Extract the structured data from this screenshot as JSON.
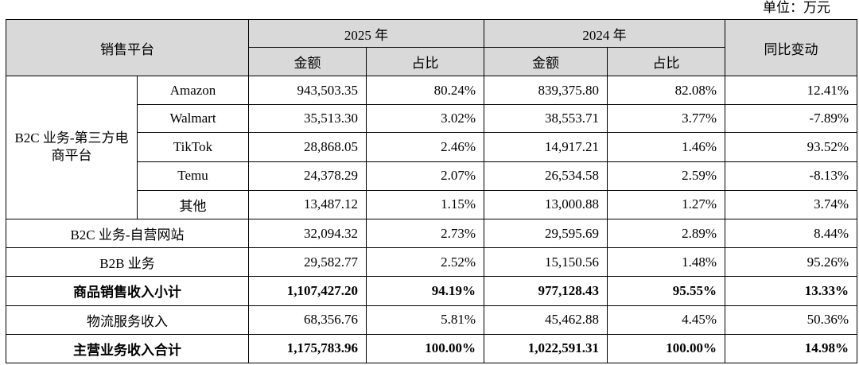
{
  "unit_label": "单位：万元",
  "header": {
    "platform": "销售平台",
    "year_2025": "2025 年",
    "year_2024": "2024 年",
    "yoy": "同比变动",
    "amount": "金额",
    "share": "占比"
  },
  "group_b2c_third_party": "B2C 业务-第三方电商平台",
  "rows": [
    {
      "name": "Amazon",
      "a2025": "943,503.35",
      "s2025": "80.24%",
      "a2024": "839,375.80",
      "s2024": "82.08%",
      "yoy": "12.41%"
    },
    {
      "name": "Walmart",
      "a2025": "35,513.30",
      "s2025": "3.02%",
      "a2024": "38,553.71",
      "s2024": "3.77%",
      "yoy": "-7.89%"
    },
    {
      "name": "TikTok",
      "a2025": "28,868.05",
      "s2025": "2.46%",
      "a2024": "14,917.21",
      "s2024": "1.46%",
      "yoy": "93.52%"
    },
    {
      "name": "Temu",
      "a2025": "24,378.29",
      "s2025": "2.07%",
      "a2024": "26,534.58",
      "s2024": "2.59%",
      "yoy": "-8.13%"
    },
    {
      "name": "其他",
      "a2025": "13,487.12",
      "s2025": "1.15%",
      "a2024": "13,000.88",
      "s2024": "1.27%",
      "yoy": "3.74%"
    },
    {
      "name": "B2C 业务-自营网站",
      "a2025": "32,094.32",
      "s2025": "2.73%",
      "a2024": "29,595.69",
      "s2024": "2.89%",
      "yoy": "8.44%"
    },
    {
      "name": "B2B 业务",
      "a2025": "29,582.77",
      "s2025": "2.52%",
      "a2024": "15,150.56",
      "s2024": "1.48%",
      "yoy": "95.26%"
    },
    {
      "name": "商品销售收入小计",
      "a2025": "1,107,427.20",
      "s2025": "94.19%",
      "a2024": "977,128.43",
      "s2024": "95.55%",
      "yoy": "13.33%"
    },
    {
      "name": "物流服务收入",
      "a2025": "68,356.76",
      "s2025": "5.81%",
      "a2024": "45,462.88",
      "s2024": "4.45%",
      "yoy": "50.36%"
    },
    {
      "name": "主营业务收入合计",
      "a2025": "1,175,783.96",
      "s2025": "100.00%",
      "a2024": "1,022,591.31",
      "s2024": "100.00%",
      "yoy": "14.98%"
    }
  ]
}
